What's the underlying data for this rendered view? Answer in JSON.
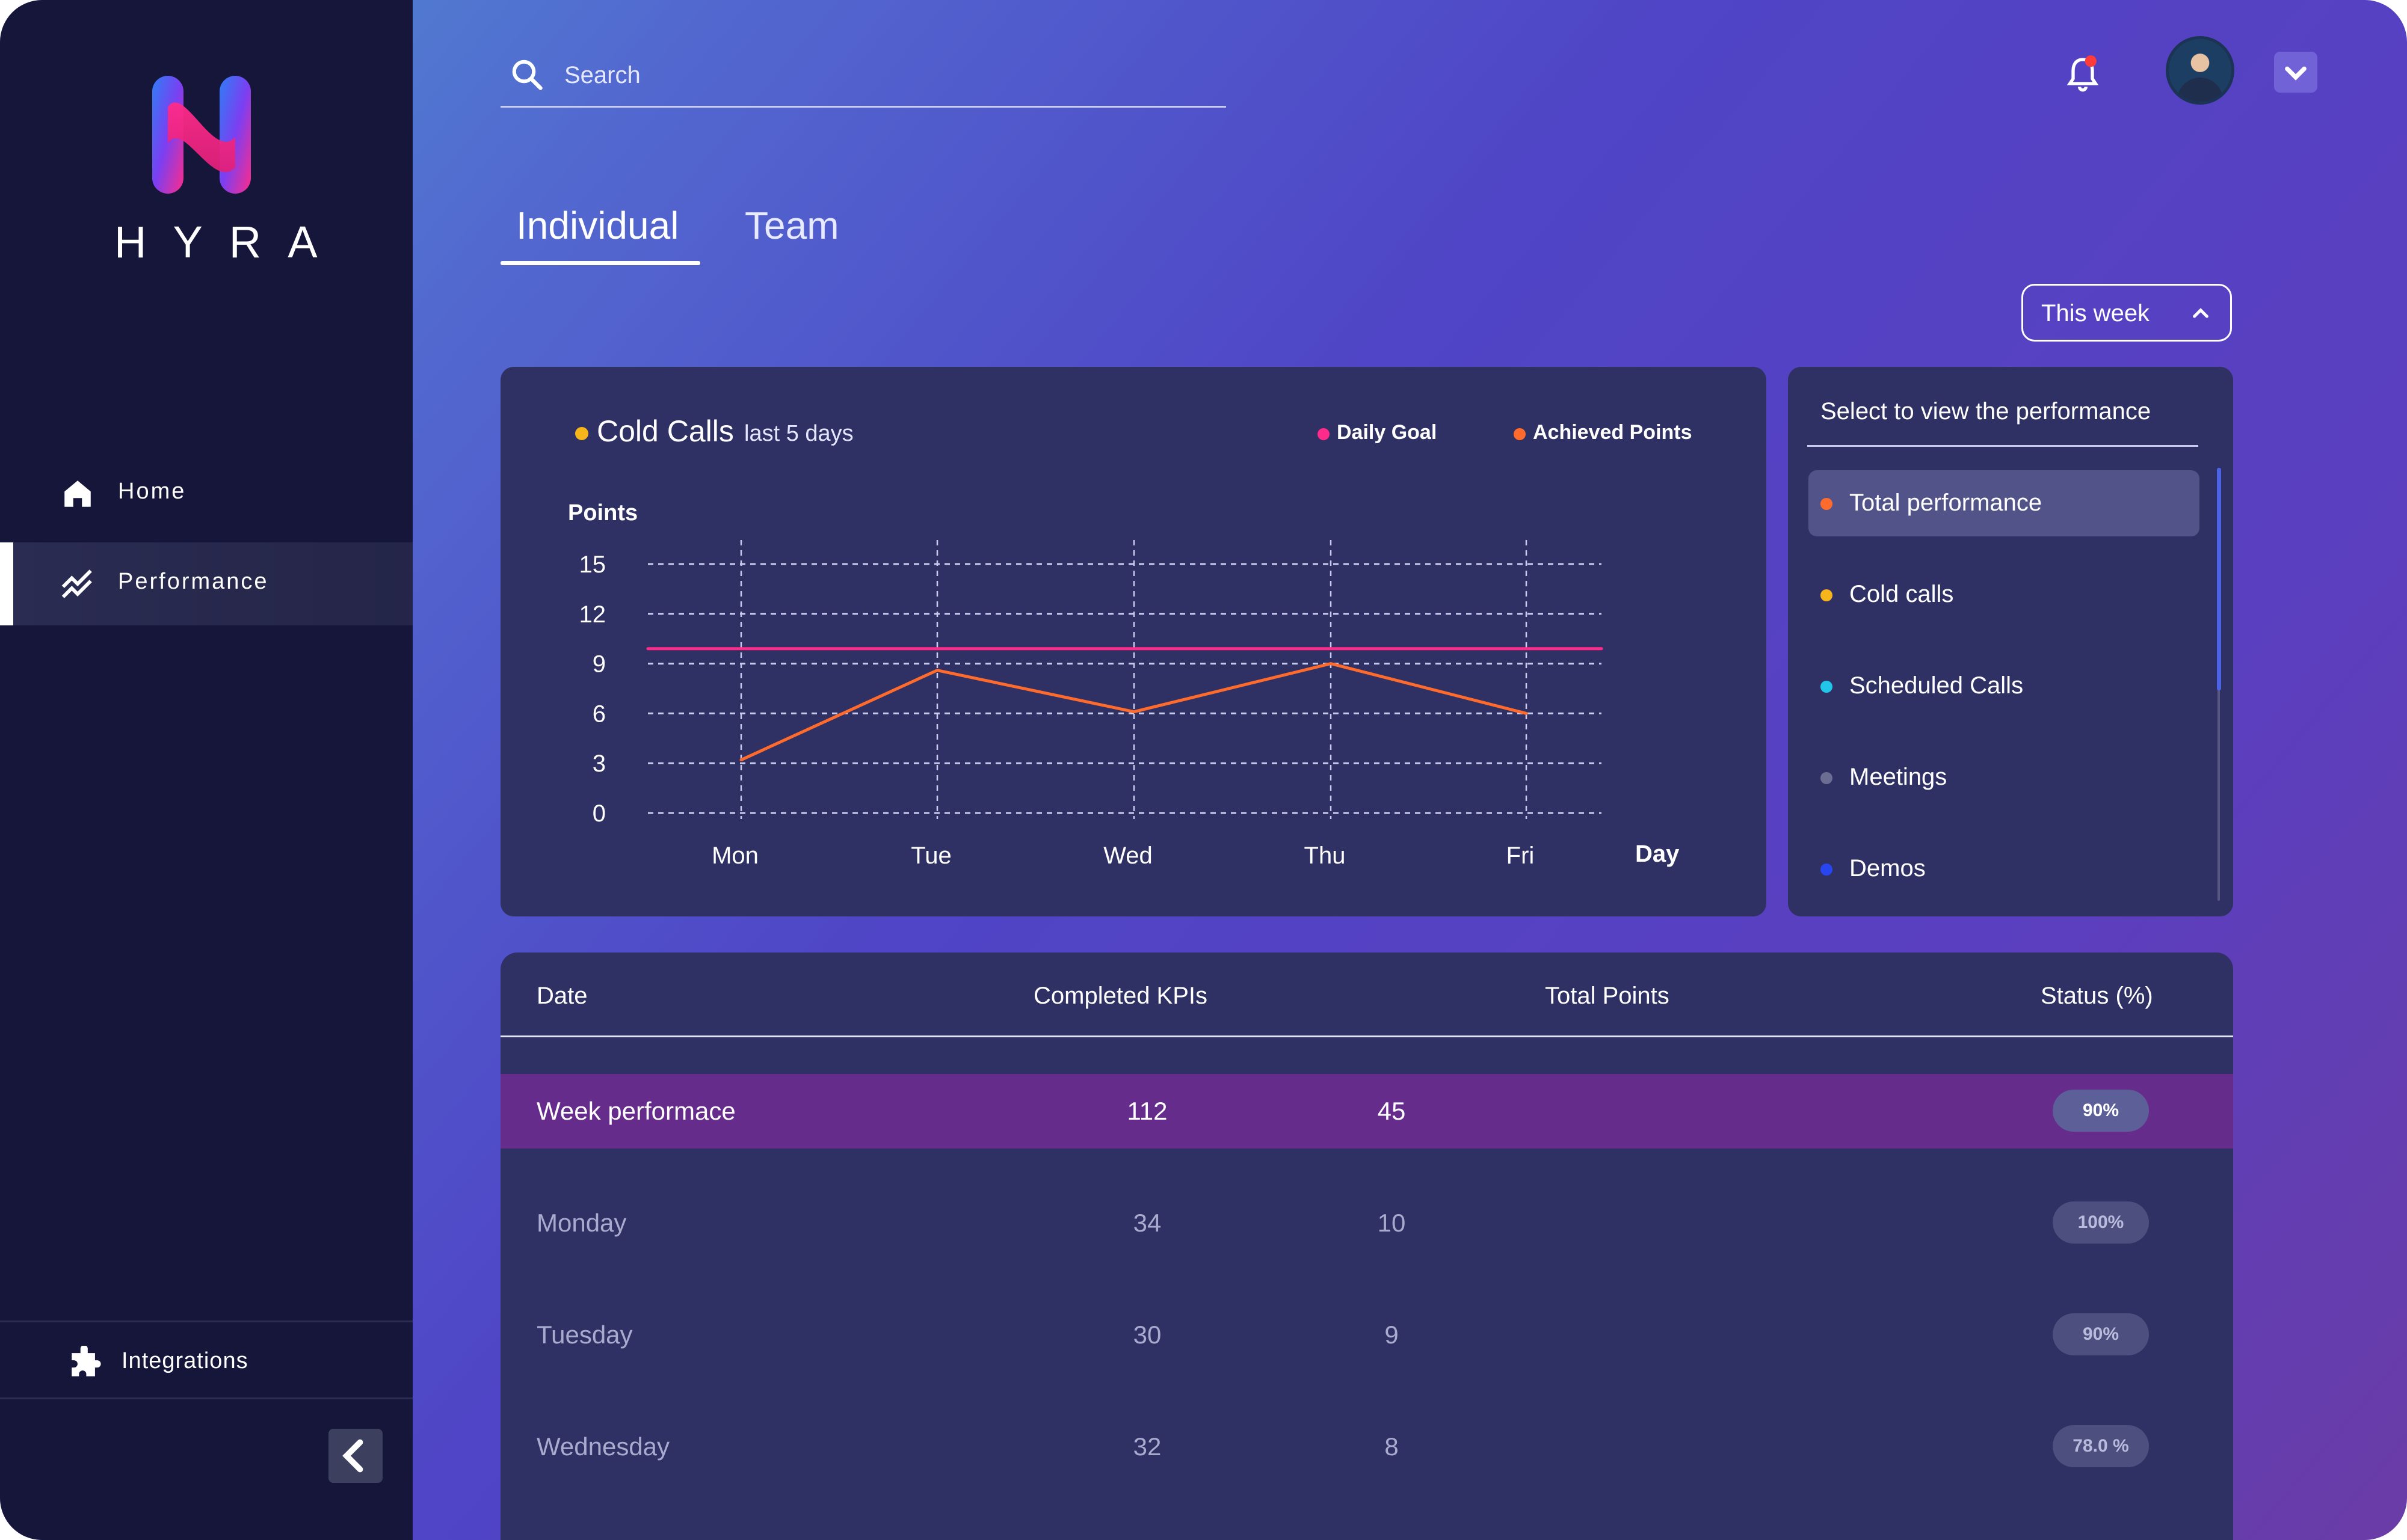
{
  "brand": {
    "name": "HYRA"
  },
  "sidebar": {
    "items": [
      {
        "label": "Home",
        "icon": "home-icon"
      },
      {
        "label": "Performance",
        "icon": "trending-icon"
      }
    ],
    "footer_item": {
      "label": "Integrations",
      "icon": "puzzle-icon"
    }
  },
  "header": {
    "search_placeholder": "Search",
    "notification_badge_color": "#ff3b3b"
  },
  "tabs": [
    {
      "label": "Individual",
      "active": true
    },
    {
      "label": "Team",
      "active": false
    }
  ],
  "period_select": {
    "label": "This week"
  },
  "chart_card": {
    "title": "Cold Calls",
    "subtitle": "last 5 days",
    "title_dot_color": "#f7b51c",
    "legend": [
      {
        "label": "Daily Goal",
        "color": "#ff2b8a"
      },
      {
        "label": "Achieved Points",
        "color": "#ff6b2c"
      }
    ]
  },
  "chart_data": {
    "type": "line",
    "title": "Cold Calls",
    "subtitle": "last 5 days",
    "xlabel": "Day",
    "ylabel": "Points",
    "categories": [
      "Mon",
      "Tue",
      "Wed",
      "Thu",
      "Fri"
    ],
    "yticks": [
      0,
      3,
      6,
      9,
      12,
      15
    ],
    "ylim": [
      0,
      15
    ],
    "grid": true,
    "legend_position": "top-right",
    "series": [
      {
        "name": "Daily Goal",
        "color": "#ff2b8a",
        "values": [
          9.9,
          9.9,
          9.9,
          9.9,
          9.9
        ]
      },
      {
        "name": "Achieved Points",
        "color": "#ff6b2c",
        "values": [
          3.2,
          8.6,
          6.1,
          9.0,
          6.0
        ]
      }
    ]
  },
  "performance_panel": {
    "title": "Select to view the performance",
    "options": [
      {
        "label": "Total performance",
        "color": "#ff6b2c",
        "selected": true
      },
      {
        "label": "Cold calls",
        "color": "#f7b51c",
        "selected": false
      },
      {
        "label": "Scheduled Calls",
        "color": "#22c6e8",
        "selected": false
      },
      {
        "label": "Meetings",
        "color": "#6b6d92",
        "selected": false
      },
      {
        "label": "Demos",
        "color": "#2746f0",
        "selected": false
      }
    ]
  },
  "table": {
    "headers": [
      "Date",
      "Completed KPIs",
      "Total Points",
      "Status (%)"
    ],
    "rows": [
      {
        "date": "Week performace",
        "kpis": "112",
        "points": "45",
        "status": "90%"
      },
      {
        "date": "Monday",
        "kpis": "34",
        "points": "10",
        "status": "100%"
      },
      {
        "date": "Tuesday",
        "kpis": "30",
        "points": "9",
        "status": "90%"
      },
      {
        "date": "Wednesday",
        "kpis": "32",
        "points": "8",
        "status": "78.0 %"
      }
    ]
  }
}
